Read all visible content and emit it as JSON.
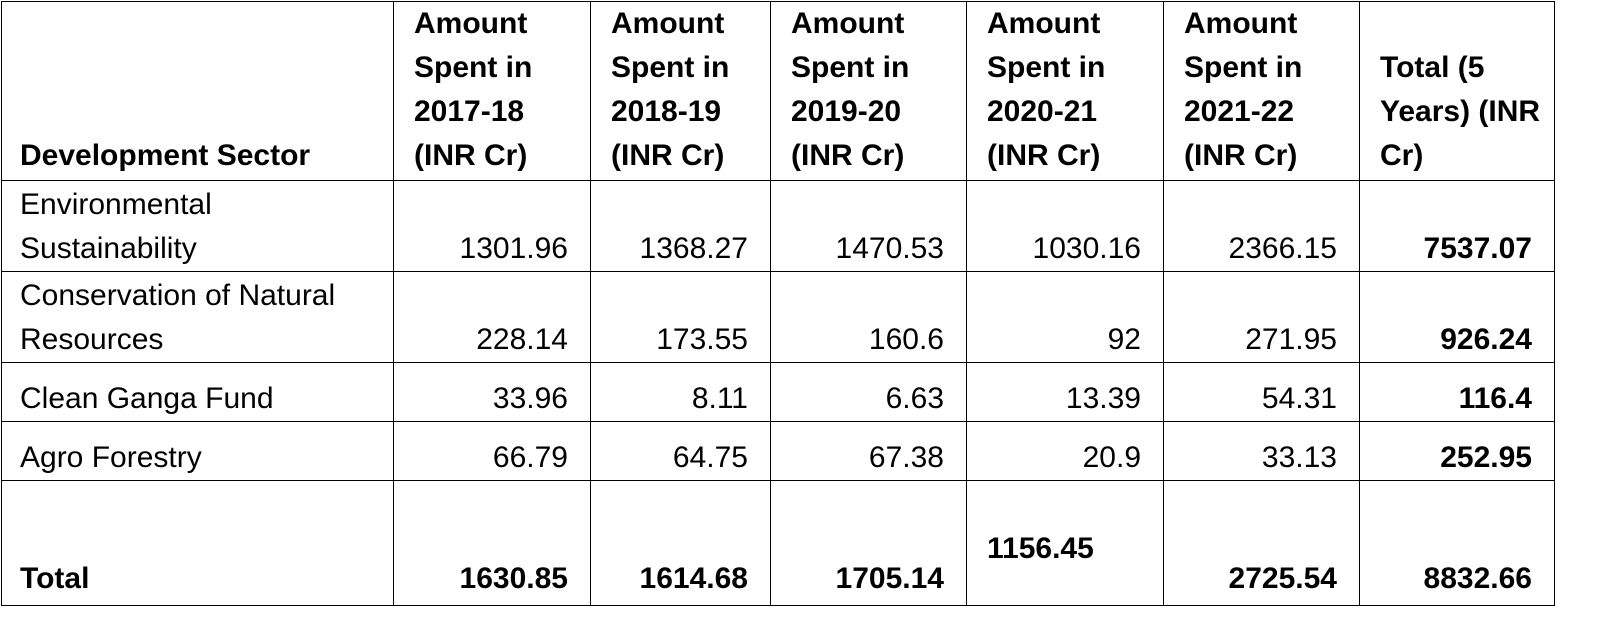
{
  "table": {
    "headers": [
      "Development Sector",
      "Amount Spent in 2017-18 (INR Cr)",
      "Amount Spent in 2018-19 (INR Cr)",
      "Amount Spent in 2019-20 (INR Cr)",
      "Amount Spent in 2020-21 (INR Cr)",
      "Amount Spent in 2021-22 (INR Cr)",
      "Total (5 Years) (INR Cr)"
    ],
    "rows": [
      {
        "sector": "Environmental Sustainability",
        "values": [
          "1301.96",
          "1368.27",
          "1470.53",
          "1030.16",
          "2366.15"
        ],
        "total": "7537.07"
      },
      {
        "sector": "Conservation of Natural Resources",
        "values": [
          "228.14",
          "173.55",
          "160.6",
          "92",
          "271.95"
        ],
        "total": "926.24"
      },
      {
        "sector": "Clean Ganga Fund",
        "values": [
          "33.96",
          "8.11",
          "6.63",
          "13.39",
          "54.31"
        ],
        "total": "116.4"
      },
      {
        "sector": "Agro Forestry",
        "values": [
          "66.79",
          "64.75",
          "67.38",
          "20.9",
          "33.13"
        ],
        "total": "252.95"
      }
    ],
    "total_row": {
      "label": "Total",
      "values": [
        "1630.85",
        "1614.68",
        "1705.14",
        "1156.45",
        "2725.54"
      ],
      "total": "8832.66"
    }
  }
}
